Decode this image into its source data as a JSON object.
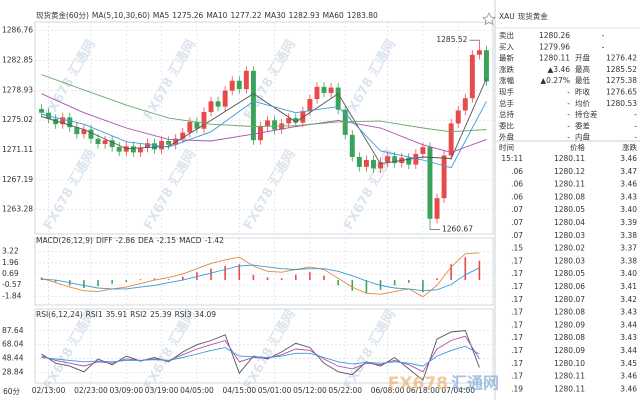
{
  "chart_data": [
    {
      "type": "candlestick",
      "title": "现货黄金(60分)",
      "indicator": "MA(5,10,30,60)",
      "open": [
        1276.5,
        1276.0,
        1275.2,
        1274.5,
        1275.4,
        1274.1,
        1273.2,
        1273.8,
        1272.6,
        1271.9,
        1272.4,
        1271.5,
        1270.9,
        1271.6,
        1270.8,
        1271.4,
        1272.0,
        1271.2,
        1272.3,
        1271.8,
        1272.6,
        1273.4,
        1274.8,
        1273.9,
        1276.1,
        1277.5,
        1276.8,
        1278.9,
        1280.2,
        1279.1,
        1281.5,
        1272.4,
        1274.2,
        1275.0,
        1273.8,
        1274.6,
        1275.3,
        1274.7,
        1276.2,
        1277.8,
        1279.4,
        1278.6,
        1279.3,
        1276.4,
        1273.1,
        1270.2,
        1268.9,
        1269.8,
        1268.7,
        1269.5,
        1270.3,
        1269.4,
        1270.1,
        1269.2,
        1270.6,
        1271.5,
        1262.1,
        1264.8,
        1270.4,
        1274.6,
        1276.3,
        1277.9,
        1283.6,
        1284.2
      ],
      "high": [
        1277.1,
        1276.6,
        1275.8,
        1276.0,
        1276.0,
        1274.7,
        1274.4,
        1274.4,
        1273.2,
        1273.0,
        1273.0,
        1272.1,
        1272.2,
        1272.2,
        1272.0,
        1272.6,
        1272.6,
        1272.9,
        1272.9,
        1273.2,
        1274.0,
        1275.4,
        1275.4,
        1276.7,
        1278.1,
        1278.1,
        1279.5,
        1280.8,
        1280.8,
        1282.1,
        1282.1,
        1274.8,
        1275.6,
        1275.6,
        1275.2,
        1275.9,
        1275.9,
        1276.8,
        1278.4,
        1280.0,
        1280.0,
        1279.9,
        1279.9,
        1277.0,
        1273.7,
        1270.8,
        1270.4,
        1270.4,
        1270.1,
        1270.9,
        1270.9,
        1270.7,
        1270.7,
        1271.2,
        1272.1,
        1272.1,
        1265.4,
        1271.0,
        1275.2,
        1276.9,
        1278.5,
        1284.2,
        1285.52,
        1284.8
      ],
      "low": [
        1275.4,
        1274.6,
        1273.9,
        1273.9,
        1273.5,
        1272.6,
        1272.6,
        1272.0,
        1271.3,
        1271.3,
        1270.9,
        1270.3,
        1270.3,
        1270.2,
        1270.2,
        1270.8,
        1270.6,
        1270.6,
        1271.2,
        1271.2,
        1272.0,
        1272.8,
        1273.3,
        1273.3,
        1275.5,
        1276.2,
        1276.2,
        1278.3,
        1278.5,
        1278.5,
        1271.8,
        1271.8,
        1273.6,
        1273.2,
        1273.2,
        1274.0,
        1274.1,
        1274.1,
        1275.6,
        1277.2,
        1278.0,
        1278.0,
        1275.8,
        1272.5,
        1269.6,
        1268.3,
        1268.3,
        1268.1,
        1268.1,
        1268.9,
        1268.8,
        1268.8,
        1268.6,
        1268.6,
        1270.0,
        1260.67,
        1261.5,
        1264.2,
        1269.8,
        1274.0,
        1275.7,
        1277.3,
        1283.0,
        1279.5
      ],
      "close": [
        1276.0,
        1275.2,
        1274.5,
        1275.4,
        1274.1,
        1273.2,
        1273.8,
        1272.6,
        1271.9,
        1272.4,
        1271.5,
        1270.9,
        1271.6,
        1270.8,
        1271.4,
        1272.0,
        1271.2,
        1272.3,
        1271.8,
        1272.6,
        1273.4,
        1274.8,
        1273.9,
        1276.1,
        1277.5,
        1276.8,
        1278.9,
        1280.2,
        1279.1,
        1281.5,
        1272.4,
        1274.2,
        1275.0,
        1273.8,
        1274.6,
        1275.3,
        1274.7,
        1276.2,
        1277.8,
        1279.4,
        1278.6,
        1279.3,
        1276.4,
        1273.1,
        1270.2,
        1268.9,
        1269.8,
        1268.7,
        1269.5,
        1270.3,
        1269.4,
        1270.1,
        1269.2,
        1270.6,
        1271.5,
        1262.1,
        1264.8,
        1270.4,
        1274.6,
        1276.3,
        1277.9,
        1283.6,
        1284.2,
        1280.11
      ],
      "up_color": "#e84a4a",
      "down_color": "#3aa35a",
      "ylim": [
        1260.1,
        1287.9
      ],
      "yticks": [
        1286.76,
        1282.85,
        1278.93,
        1275.02,
        1271.11,
        1267.19,
        1263.28
      ],
      "xticks": [
        {
          "value": 1,
          "label": "02/13:00"
        },
        {
          "value": 7,
          "label": "02/23:00"
        },
        {
          "value": 12,
          "label": "03/09:00"
        },
        {
          "value": 17,
          "label": "03/19:00"
        },
        {
          "value": 22,
          "label": "04/05:00"
        },
        {
          "value": 28,
          "label": "04/15:00"
        },
        {
          "value": 33,
          "label": "05/01:00"
        },
        {
          "value": 38,
          "label": "05/12:00"
        },
        {
          "value": 43,
          "label": "05/22:00"
        },
        {
          "value": 49,
          "label": "06/08:00"
        },
        {
          "value": 54,
          "label": "06/18:00"
        },
        {
          "value": 59,
          "label": "07/04:00"
        }
      ],
      "annotations": [
        1285.52,
        1260.67
      ],
      "line_x": [
        0,
        6,
        12,
        18,
        24,
        30,
        36,
        42,
        48,
        54,
        58,
        63
      ],
      "series": [
        {
          "name": "MA5",
          "current": "1275.26",
          "color": "#555555",
          "values": [
            1275.5,
            1273.8,
            1271.3,
            1271.6,
            1275.0,
            1278.5,
            1274.8,
            1278.5,
            1269.3,
            1270.2,
            1270.0,
            1280.5
          ]
        },
        {
          "name": "MA10",
          "current": "1277.22",
          "color": "#3a9bd8",
          "values": [
            1275.8,
            1274.5,
            1272.2,
            1271.5,
            1273.5,
            1277.5,
            1276.0,
            1276.8,
            1271.0,
            1269.8,
            1268.8,
            1277.5
          ]
        },
        {
          "name": "MA30",
          "current": "1282.93",
          "color": "#b04fb0",
          "values": [
            1278.5,
            1276.0,
            1274.0,
            1272.5,
            1272.3,
            1273.2,
            1274.2,
            1275.0,
            1274.0,
            1271.8,
            1270.8,
            1272.5
          ]
        },
        {
          "name": "MA60",
          "current": "1283.80",
          "color": "#6aa86a",
          "values": [
            1281.0,
            1279.0,
            1277.0,
            1275.3,
            1274.5,
            1274.2,
            1274.3,
            1274.8,
            1274.9,
            1274.0,
            1273.5,
            1273.8
          ]
        }
      ]
    },
    {
      "type": "macd",
      "title": "MACD(26,12,9)",
      "x": [
        0,
        2,
        4,
        6,
        8,
        10,
        12,
        14,
        16,
        18,
        20,
        22,
        24,
        26,
        28,
        30,
        32,
        34,
        36,
        38,
        40,
        42,
        44,
        46,
        48,
        50,
        52,
        54,
        56,
        58,
        60,
        62
      ],
      "ylim": [
        -2.6,
        4.1
      ],
      "yticks": [
        3.22,
        1.96,
        0.69,
        -0.57,
        -1.84
      ],
      "up_color": "#e84a4a",
      "down_color": "#3aa35a",
      "bars": {
        "name": "MACD",
        "current": "-1.42",
        "values": [
          0.3,
          -0.2,
          -0.6,
          -0.9,
          -0.7,
          -0.4,
          -0.2,
          0.1,
          0.2,
          0.1,
          0.4,
          0.9,
          1.3,
          1.6,
          1.8,
          0.6,
          0.3,
          0.2,
          0.6,
          0.9,
          0.5,
          -0.6,
          -1.2,
          -1.5,
          -1.1,
          -0.6,
          -0.3,
          -1.4,
          0.2,
          1.8,
          2.6,
          2.2
        ]
      },
      "series": [
        {
          "name": "DIFF",
          "current": "-2.86",
          "color": "#e08a3c",
          "values": [
            0.2,
            -0.3,
            -0.8,
            -1.2,
            -1.3,
            -1.0,
            -0.8,
            -0.4,
            0.0,
            0.3,
            0.7,
            1.3,
            1.9,
            2.3,
            2.6,
            1.6,
            1.0,
            0.9,
            1.2,
            1.5,
            1.2,
            0.2,
            -0.8,
            -1.5,
            -1.6,
            -1.3,
            -1.0,
            -1.9,
            -0.6,
            1.5,
            3.0,
            3.1
          ]
        },
        {
          "name": "DEA",
          "current": "-2.15",
          "color": "#3a9bd8",
          "values": [
            0.1,
            0.0,
            -0.3,
            -0.6,
            -0.9,
            -1.0,
            -1.0,
            -0.8,
            -0.6,
            -0.3,
            0.0,
            0.4,
            0.8,
            1.2,
            1.6,
            1.7,
            1.5,
            1.3,
            1.2,
            1.3,
            1.3,
            1.0,
            0.5,
            -0.1,
            -0.6,
            -0.9,
            -1.0,
            -1.2,
            -1.1,
            -0.5,
            0.6,
            1.4
          ]
        }
      ]
    },
    {
      "type": "rsi",
      "title": "RSI(6,12,24)",
      "x": [
        0,
        2,
        4,
        6,
        8,
        10,
        12,
        14,
        16,
        18,
        20,
        22,
        24,
        26,
        28,
        30,
        32,
        34,
        36,
        38,
        40,
        42,
        44,
        46,
        48,
        50,
        52,
        54,
        56,
        58,
        60,
        62
      ],
      "ylim": [
        17,
        100
      ],
      "yticks": [
        87.64,
        68.04,
        48.44,
        28.84
      ],
      "series": [
        {
          "name": "RSI1",
          "current": "35.91",
          "color": "#555555",
          "values": [
            55,
            42,
            38,
            30,
            48,
            40,
            52,
            45,
            50,
            44,
            58,
            68,
            74,
            82,
            28,
            52,
            48,
            58,
            70,
            64,
            42,
            30,
            26,
            44,
            38,
            50,
            34,
            18,
            76,
            86,
            88,
            36
          ]
        },
        {
          "name": "RSI2",
          "current": "25.39",
          "color": "#b04fb0",
          "values": [
            52,
            46,
            42,
            38,
            44,
            42,
            48,
            46,
            48,
            46,
            54,
            62,
            68,
            74,
            44,
            50,
            49,
            54,
            62,
            60,
            48,
            38,
            34,
            42,
            40,
            46,
            40,
            30,
            62,
            74,
            80,
            48
          ]
        },
        {
          "name": "RSI3",
          "current": "34.09",
          "color": "#3a9bd8",
          "values": [
            50,
            48,
            46,
            44,
            45,
            44,
            46,
            46,
            47,
            46,
            50,
            55,
            60,
            64,
            52,
            51,
            50,
            52,
            56,
            56,
            50,
            44,
            41,
            43,
            42,
            44,
            42,
            38,
            52,
            60,
            66,
            55
          ]
        }
      ]
    }
  ],
  "period_label": "60分",
  "watermark": "FX678 汇通网",
  "logo": [
    "FX678",
    "汇通网"
  ],
  "quote": {
    "symbol": "XAU",
    "name": "现货黄金",
    "rows": [
      [
        "卖出",
        "1280.26",
        "-"
      ],
      [
        "买入",
        "1279.96",
        "-"
      ],
      [
        "最新",
        "1280.11",
        "开盘",
        "1276.42"
      ],
      [
        "涨跌",
        "▲3.46",
        "最高",
        "1285.52"
      ],
      [
        "涨幅",
        "▲0.27%",
        "最低",
        "1275.38"
      ],
      [
        "现手",
        "-",
        "昨收",
        "1276.65"
      ],
      [
        "总手",
        "-",
        "均价",
        "1280.53"
      ],
      [
        "总持",
        "-",
        "持仓差",
        "-"
      ],
      [
        "委比",
        "-",
        "委差",
        "-"
      ],
      [
        "外盘",
        "-",
        "内盘",
        "-"
      ]
    ]
  },
  "trades": {
    "header": [
      "时间",
      "价格",
      "涨跌"
    ],
    "rows": [
      [
        "15:11",
        "1280.11",
        "3.46"
      ],
      [
        ".06",
        "1280.12",
        "3.47"
      ],
      [
        ".06",
        "1280.11",
        "3.46"
      ],
      [
        ".06",
        "1280.08",
        "3.43"
      ],
      [
        ".07",
        "1280.05",
        "3.40"
      ],
      [
        ".07",
        "1280.04",
        "3.39"
      ],
      [
        ".07",
        "1280.03",
        "3.38"
      ],
      [
        ".15",
        "1280.02",
        "3.37"
      ],
      [
        ".17",
        "1280.03",
        "3.38"
      ],
      [
        ".17",
        "1280.05",
        "3.40"
      ],
      [
        ".17",
        "1280.06",
        "3.41"
      ],
      [
        ".17",
        "1280.07",
        "3.42"
      ],
      [
        ".17",
        "1280.08",
        "3.43"
      ],
      [
        ".17",
        "1280.09",
        "3.44"
      ],
      [
        ".17",
        "1280.08",
        "3.43"
      ],
      [
        ".17",
        "1280.09",
        "3.44"
      ],
      [
        ".17",
        "1280.10",
        "3.45"
      ],
      [
        ".17",
        "1280.11",
        "3.46"
      ],
      [
        ".19",
        "1280.11",
        "3.46"
      ]
    ]
  }
}
